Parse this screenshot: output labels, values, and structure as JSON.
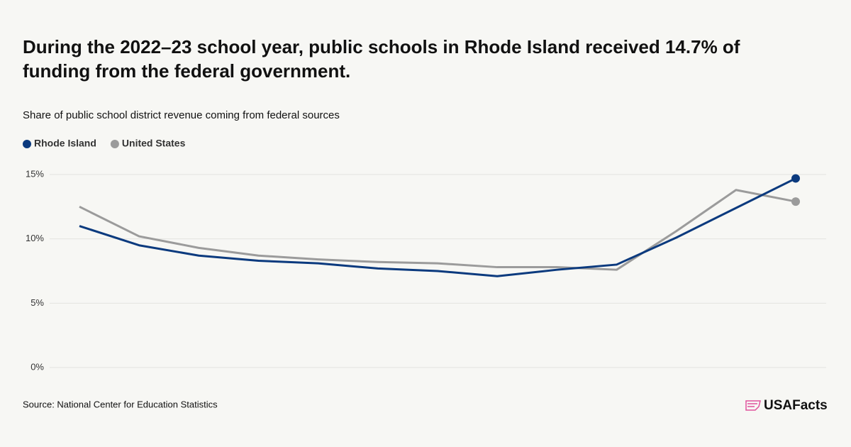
{
  "chart_data": {
    "type": "line",
    "title": "During the 2022–23 school year, public schools in Rhode Island received 14.7% of funding from the federal government.",
    "subtitle": "Share of public school district revenue coming from federal sources",
    "categories": [
      null,
      null,
      null,
      null,
      null,
      null,
      null,
      null,
      null,
      null,
      null,
      null,
      null
    ],
    "series": [
      {
        "name": "Rhode Island",
        "color": "#0b3a7e",
        "values": [
          11.0,
          9.5,
          8.7,
          8.3,
          8.1,
          7.7,
          7.5,
          7.1,
          7.6,
          8.0,
          10.1,
          12.4,
          14.7
        ]
      },
      {
        "name": "United States",
        "color": "#9b9b9b",
        "values": [
          12.5,
          10.2,
          9.3,
          8.7,
          8.4,
          8.2,
          8.1,
          7.8,
          7.8,
          7.6,
          10.6,
          13.8,
          12.9
        ]
      }
    ],
    "ylim": [
      0,
      15
    ],
    "yticks": [
      {
        "value": 0,
        "label": "0%"
      },
      {
        "value": 5,
        "label": "5%"
      },
      {
        "value": 10,
        "label": "10%"
      },
      {
        "value": 15,
        "label": "15%"
      }
    ],
    "grid": true,
    "legend": "top",
    "source": "Source: National Center for Education Statistics",
    "logo": "USAFacts"
  }
}
